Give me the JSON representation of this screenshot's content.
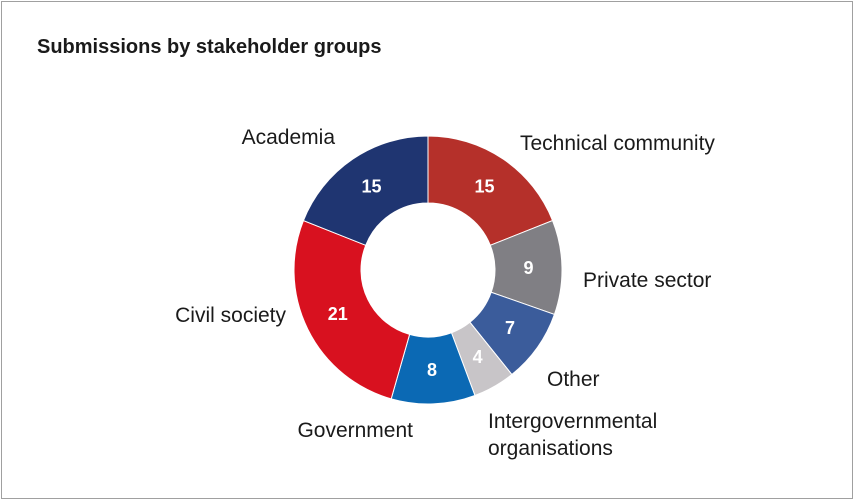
{
  "chart_data": {
    "type": "donut",
    "title": "Submissions by stakeholder groups",
    "categories": [
      "Technical community",
      "Private sector",
      "Other",
      "Intergovernmental organisations",
      "Government",
      "Civil society",
      "Academia"
    ],
    "values": [
      15,
      9,
      7,
      4,
      8,
      21,
      15
    ],
    "colors": [
      "#b5302a",
      "#807f84",
      "#3b5c9b",
      "#c8c5c8",
      "#0b69b4",
      "#d8111f",
      "#1f3571"
    ]
  }
}
